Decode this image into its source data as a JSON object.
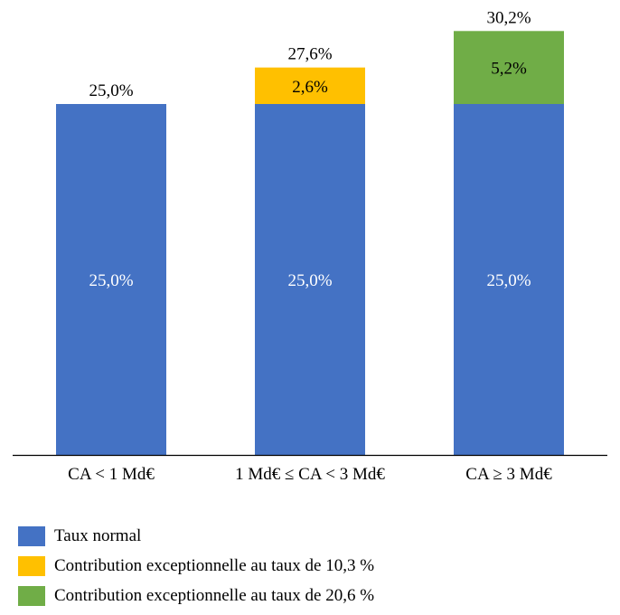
{
  "chart_data": {
    "type": "bar",
    "stacked": true,
    "title": "",
    "xlabel": "",
    "ylabel": "",
    "ylim": [
      0,
      31
    ],
    "grid": false,
    "legend_position": "bottom",
    "categories": [
      "CA < 1 Md€",
      "1 Md€ ≤ CA < 3 Md€",
      "CA ≥ 3 Md€"
    ],
    "series": [
      {
        "name": "Taux normal",
        "color": "#4472C4",
        "values": [
          25.0,
          25.0,
          25.0
        ],
        "labels": [
          "25,0%",
          "25,0%",
          "25,0%"
        ]
      },
      {
        "name": "Contribution exceptionnelle au taux de 10,3 %",
        "color": "#FFC000",
        "values": [
          0,
          2.6,
          0
        ],
        "labels": [
          "",
          "2,6%",
          ""
        ]
      },
      {
        "name": "Contribution exceptionnelle au taux de 20,6 %",
        "color": "#70AD47",
        "values": [
          0,
          0,
          5.2
        ],
        "labels": [
          "",
          "",
          "5,2%"
        ]
      }
    ],
    "totals": [
      25.0,
      27.6,
      30.2
    ],
    "total_labels": [
      "25,0%",
      "27,6%",
      "30,2%"
    ]
  }
}
